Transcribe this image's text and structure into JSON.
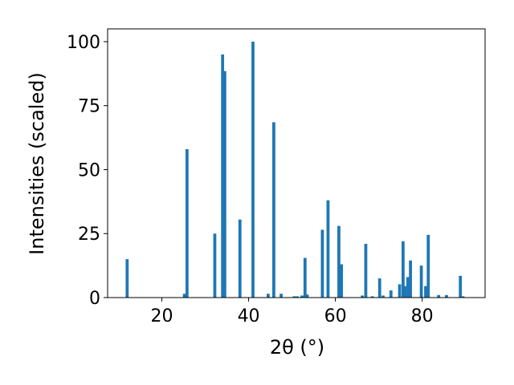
{
  "chart_data": {
    "type": "bar",
    "title": "",
    "xlabel": "2θ (°)",
    "ylabel": "Intensities (scaled)",
    "xlim": [
      7.5,
      94.5
    ],
    "ylim": [
      0,
      105
    ],
    "xticks": [
      20,
      40,
      60,
      80
    ],
    "yticks": [
      0,
      25,
      50,
      75,
      100
    ],
    "bar_color": "#1f77b4",
    "bar_width": 0.7,
    "grid": false,
    "legend": "none",
    "x": [
      12.0,
      25.2,
      25.8,
      32.2,
      34.0,
      34.5,
      38.0,
      41.0,
      44.5,
      45.8,
      47.5,
      50.5,
      51.2,
      52.3,
      53.0,
      53.5,
      57.0,
      58.3,
      60.8,
      61.4,
      66.2,
      67.0,
      68.5,
      70.2,
      71.0,
      72.8,
      74.8,
      75.6,
      76.0,
      76.7,
      77.3,
      79.8,
      80.8,
      81.4,
      83.8,
      85.6,
      88.8,
      89.4
    ],
    "values": [
      15,
      1.5,
      58,
      25,
      95,
      88.5,
      30.5,
      100,
      1.5,
      68.5,
      1.5,
      0.5,
      0.5,
      0.8,
      15.5,
      1.2,
      26.5,
      38,
      28,
      13,
      0.8,
      21,
      0.5,
      7.5,
      0.8,
      2.8,
      5.2,
      22,
      4.5,
      8,
      14.5,
      12.5,
      4.5,
      24.5,
      1,
      1,
      8.5,
      0.5
    ]
  }
}
